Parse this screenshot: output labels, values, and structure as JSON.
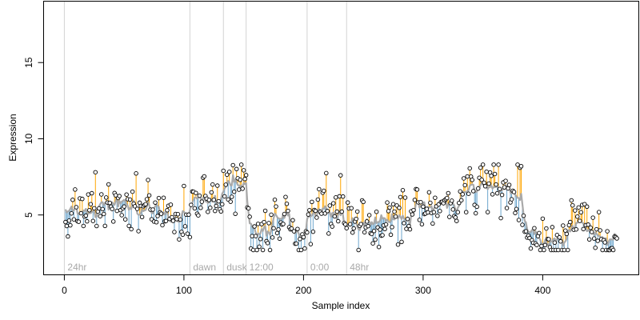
{
  "chart_data": {
    "type": "scatter",
    "title": "",
    "xlabel": "Sample index",
    "ylabel": "Expression",
    "xlim": [
      -17,
      480
    ],
    "ylim": [
      1.1,
      19.0
    ],
    "x_ticks": [
      0,
      100,
      200,
      300,
      400
    ],
    "y_ticks": [
      5,
      10,
      15
    ],
    "grid": false,
    "colors": {
      "above_stem": "#FFA500",
      "below_stem": "#6CA6CD",
      "fit_line": "#A9A9A9",
      "point_edge": "#000000",
      "vline": "#D3D3D3",
      "marker_text": "#A9A9A9"
    },
    "markers": [
      {
        "x": 0,
        "label": "24hr"
      },
      {
        "x": 105,
        "label": "dawn"
      },
      {
        "x": 133,
        "label": "dusk"
      },
      {
        "x": 152,
        "label": "12:00"
      },
      {
        "x": 203,
        "label": "0:00"
      },
      {
        "x": 236,
        "label": "48hr"
      }
    ],
    "segments": [
      {
        "from": 0,
        "to": 27,
        "level": 5.2
      },
      {
        "from": 27,
        "to": 56,
        "level": 5.6
      },
      {
        "from": 56,
        "to": 79,
        "level": 5.4
      },
      {
        "from": 79,
        "to": 104,
        "level": 4.9
      },
      {
        "from": 104,
        "to": 131,
        "level": 5.9
      },
      {
        "from": 131,
        "to": 152,
        "level": 7.2
      },
      {
        "from": 152,
        "to": 172,
        "level": 3.9
      },
      {
        "from": 172,
        "to": 188,
        "level": 4.9
      },
      {
        "from": 188,
        "to": 201,
        "level": 3.6
      },
      {
        "from": 201,
        "to": 232,
        "level": 5.3
      },
      {
        "from": 232,
        "to": 261,
        "level": 4.5
      },
      {
        "from": 261,
        "to": 290,
        "level": 4.8
      },
      {
        "from": 290,
        "to": 330,
        "level": 5.7
      },
      {
        "from": 330,
        "to": 360,
        "level": 6.8
      },
      {
        "from": 360,
        "to": 382,
        "level": 6.5
      },
      {
        "from": 382,
        "to": 398,
        "level": 3.8
      },
      {
        "from": 398,
        "to": 420,
        "level": 3.5
      },
      {
        "from": 420,
        "to": 437,
        "level": 4.4
      },
      {
        "from": 437,
        "to": 462,
        "level": 3.6
      }
    ],
    "n_points": 462,
    "noise_seed": 20240611,
    "noise_sd": 1.0,
    "highlights": [
      {
        "x": 25,
        "y": 7.8
      },
      {
        "x": 132,
        "y": 7.9
      },
      {
        "x": 381,
        "y": 8.2
      },
      {
        "x": 380,
        "y": 8.1
      },
      {
        "x": 347,
        "y": 8.1
      },
      {
        "x": 230,
        "y": 7.6
      },
      {
        "x": 157,
        "y": 2.7
      },
      {
        "x": 155,
        "y": 2.8
      },
      {
        "x": 195,
        "y": 2.7
      },
      {
        "x": 200,
        "y": 2.8
      },
      {
        "x": 262,
        "y": 2.9
      },
      {
        "x": 389,
        "y": 2.8
      },
      {
        "x": 415,
        "y": 2.7
      },
      {
        "x": 456,
        "y": 2.8
      }
    ]
  }
}
